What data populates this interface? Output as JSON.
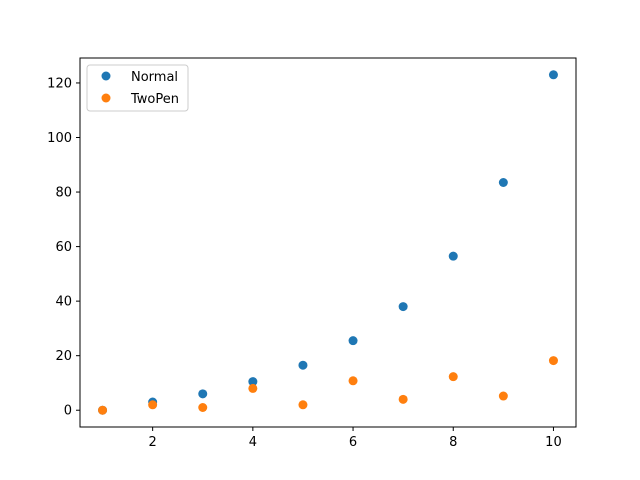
{
  "chart_data": {
    "type": "scatter",
    "title": "",
    "xlabel": "",
    "ylabel": "",
    "xlim": [
      0.55,
      10.45
    ],
    "ylim": [
      -6.15,
      129.15
    ],
    "xticks": [
      2,
      4,
      6,
      8,
      10
    ],
    "yticks": [
      0,
      20,
      40,
      60,
      80,
      100,
      120
    ],
    "grid": false,
    "legend_position": "upper-left",
    "series": [
      {
        "name": "Normal",
        "color": "#1f77b4",
        "x": [
          1,
          2,
          3,
          4,
          5,
          6,
          7,
          8,
          9,
          10
        ],
        "y": [
          0,
          3,
          6,
          10.5,
          16.5,
          25.5,
          38,
          56.5,
          83.5,
          123
        ]
      },
      {
        "name": "TwoPen",
        "color": "#ff7f0e",
        "x": [
          1,
          2,
          3,
          4,
          5,
          6,
          7,
          8,
          9,
          10
        ],
        "y": [
          0,
          2,
          1,
          8,
          2,
          10.8,
          4,
          12.3,
          5.2,
          18.2
        ]
      }
    ]
  }
}
